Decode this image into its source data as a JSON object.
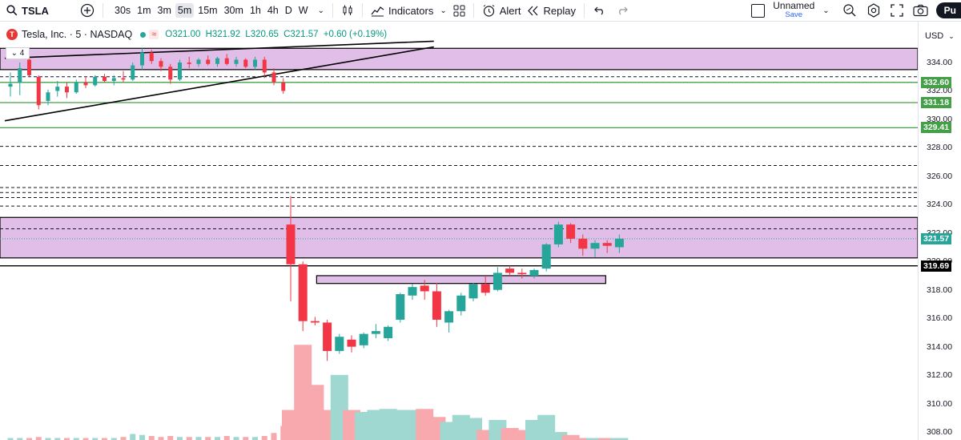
{
  "toolbar": {
    "symbol": "TSLA",
    "timeframes": [
      "30s",
      "1m",
      "3m",
      "5m",
      "15m",
      "30m",
      "1h",
      "4h",
      "D",
      "W"
    ],
    "active_timeframe": "5m",
    "indicators_label": "Indicators",
    "alert_label": "Alert",
    "replay_label": "Replay",
    "layout_name": "Unnamed",
    "save_label": "Save",
    "publish_label": "Pu"
  },
  "legend": {
    "title": "Tesla, Inc. · 5 · NASDAQ",
    "logo_letter": "T",
    "open": "O321.00",
    "high": "H321.92",
    "low": "L320.65",
    "close": "C321.57",
    "change": "+0.60 (+0.19%)",
    "indicator_count": "4"
  },
  "price_axis": {
    "currency": "USD",
    "ticks": [
      "334.00",
      "332.00",
      "330.00",
      "328.00",
      "326.00",
      "324.00",
      "322.00",
      "320.00",
      "318.00",
      "316.00",
      "314.00",
      "312.00",
      "310.00",
      "308.00"
    ],
    "labels": [
      {
        "text": "332.60",
        "price": 332.6,
        "color": "#43a047"
      },
      {
        "text": "331.18",
        "price": 331.18,
        "color": "#43a047"
      },
      {
        "text": "329.41",
        "price": 329.41,
        "color": "#43a047"
      },
      {
        "text": "321.57",
        "price": 321.57,
        "color": "#26a69a"
      },
      {
        "text": "319.69",
        "price": 319.69,
        "color": "#000000"
      }
    ]
  },
  "colors": {
    "up": "#26a69a",
    "down": "#f23645",
    "zone": "#e1bee7",
    "green_line": "#43a047"
  },
  "chart_data": {
    "type": "candlestick",
    "symbol": "TSLA",
    "interval": "5m",
    "price_range": [
      308,
      334.5
    ],
    "horizontal_levels_green": [
      332.6,
      331.18,
      329.41
    ],
    "horizontal_levels_dashed": [
      333.0,
      328.1,
      326.75,
      325.2,
      324.85,
      324.5,
      323.9,
      322.3
    ],
    "zones": [
      {
        "from": 333.5,
        "to": 335.0,
        "x_start": 0,
        "x_end": 1
      },
      {
        "from": 320.25,
        "to": 323.1,
        "x_start": 0,
        "x_end": 1
      },
      {
        "from": 318.45,
        "to": 319.0,
        "x_start": 0.345,
        "x_end": 0.66
      }
    ],
    "level_319_69": 319.69,
    "candles": [
      {
        "o": 332.3,
        "h": 333.3,
        "l": 331.6,
        "c": 332.5
      },
      {
        "o": 332.6,
        "h": 334.0,
        "l": 331.7,
        "c": 333.6
      },
      {
        "o": 334.2,
        "h": 334.5,
        "l": 333.0,
        "c": 333.1
      },
      {
        "o": 333.0,
        "h": 333.1,
        "l": 330.7,
        "c": 331.0
      },
      {
        "o": 331.3,
        "h": 332.1,
        "l": 331.0,
        "c": 331.9
      },
      {
        "o": 332.0,
        "h": 332.7,
        "l": 331.6,
        "c": 332.3
      },
      {
        "o": 332.3,
        "h": 332.6,
        "l": 331.5,
        "c": 331.9
      },
      {
        "o": 331.9,
        "h": 332.8,
        "l": 331.8,
        "c": 332.6
      },
      {
        "o": 332.6,
        "h": 333.0,
        "l": 332.2,
        "c": 332.4
      },
      {
        "o": 332.4,
        "h": 333.1,
        "l": 332.3,
        "c": 333.0
      },
      {
        "o": 333.0,
        "h": 333.2,
        "l": 332.6,
        "c": 332.7
      },
      {
        "o": 332.7,
        "h": 333.1,
        "l": 332.4,
        "c": 332.9
      },
      {
        "o": 332.9,
        "h": 333.4,
        "l": 332.6,
        "c": 332.8
      },
      {
        "o": 332.8,
        "h": 334.0,
        "l": 332.7,
        "c": 333.8
      },
      {
        "o": 333.8,
        "h": 335.0,
        "l": 333.5,
        "c": 334.7
      },
      {
        "o": 334.7,
        "h": 334.9,
        "l": 333.9,
        "c": 334.1
      },
      {
        "o": 334.1,
        "h": 334.3,
        "l": 333.4,
        "c": 333.7
      },
      {
        "o": 333.7,
        "h": 333.9,
        "l": 332.5,
        "c": 332.8
      },
      {
        "o": 332.8,
        "h": 334.2,
        "l": 332.7,
        "c": 334.0
      },
      {
        "o": 334.0,
        "h": 334.4,
        "l": 333.6,
        "c": 333.9
      },
      {
        "o": 333.9,
        "h": 334.3,
        "l": 333.7,
        "c": 334.2
      },
      {
        "o": 334.2,
        "h": 334.5,
        "l": 333.8,
        "c": 333.9
      },
      {
        "o": 333.9,
        "h": 334.4,
        "l": 333.7,
        "c": 334.3
      },
      {
        "o": 334.3,
        "h": 334.6,
        "l": 333.8,
        "c": 333.9
      },
      {
        "o": 333.9,
        "h": 334.4,
        "l": 333.7,
        "c": 334.2
      },
      {
        "o": 334.2,
        "h": 334.3,
        "l": 333.6,
        "c": 333.7
      },
      {
        "o": 333.7,
        "h": 334.4,
        "l": 333.5,
        "c": 334.2
      },
      {
        "o": 334.2,
        "h": 334.4,
        "l": 332.9,
        "c": 333.3
      },
      {
        "o": 333.3,
        "h": 333.6,
        "l": 332.4,
        "c": 332.6
      },
      {
        "o": 332.6,
        "h": 332.9,
        "l": 331.8,
        "c": 332.0
      },
      {
        "o": 322.6,
        "h": 324.6,
        "l": 317.2,
        "c": 319.8
      },
      {
        "o": 319.8,
        "h": 320.0,
        "l": 315.1,
        "c": 315.8
      },
      {
        "o": 315.8,
        "h": 316.1,
        "l": 315.5,
        "c": 315.7
      },
      {
        "o": 315.7,
        "h": 315.9,
        "l": 313.0,
        "c": 313.7
      },
      {
        "o": 313.7,
        "h": 314.9,
        "l": 313.5,
        "c": 314.7
      },
      {
        "o": 314.5,
        "h": 314.8,
        "l": 313.6,
        "c": 314.0
      },
      {
        "o": 314.1,
        "h": 315.0,
        "l": 313.9,
        "c": 314.9
      },
      {
        "o": 314.9,
        "h": 315.6,
        "l": 314.6,
        "c": 315.1
      },
      {
        "o": 314.6,
        "h": 315.5,
        "l": 314.4,
        "c": 315.4
      },
      {
        "o": 315.9,
        "h": 317.8,
        "l": 315.7,
        "c": 317.7
      },
      {
        "o": 317.6,
        "h": 318.4,
        "l": 317.3,
        "c": 318.2
      },
      {
        "o": 318.3,
        "h": 318.7,
        "l": 317.3,
        "c": 317.9
      },
      {
        "o": 317.9,
        "h": 318.5,
        "l": 315.4,
        "c": 315.9
      },
      {
        "o": 315.7,
        "h": 316.6,
        "l": 315.0,
        "c": 316.5
      },
      {
        "o": 316.5,
        "h": 317.8,
        "l": 316.2,
        "c": 317.6
      },
      {
        "o": 317.4,
        "h": 318.5,
        "l": 317.2,
        "c": 318.4
      },
      {
        "o": 318.4,
        "h": 319.0,
        "l": 317.6,
        "c": 317.8
      },
      {
        "o": 318.0,
        "h": 319.6,
        "l": 317.9,
        "c": 319.2
      },
      {
        "o": 319.5,
        "h": 319.7,
        "l": 319.0,
        "c": 319.2
      },
      {
        "o": 319.2,
        "h": 319.5,
        "l": 318.8,
        "c": 319.1
      },
      {
        "o": 319.0,
        "h": 319.5,
        "l": 318.8,
        "c": 319.4
      },
      {
        "o": 319.5,
        "h": 321.3,
        "l": 319.3,
        "c": 321.2
      },
      {
        "o": 321.2,
        "h": 322.8,
        "l": 321.0,
        "c": 322.6
      },
      {
        "o": 322.6,
        "h": 322.7,
        "l": 321.3,
        "c": 321.6
      },
      {
        "o": 321.6,
        "h": 321.9,
        "l": 320.4,
        "c": 320.9
      },
      {
        "o": 320.9,
        "h": 321.5,
        "l": 320.3,
        "c": 321.3
      },
      {
        "o": 321.3,
        "h": 321.5,
        "l": 320.6,
        "c": 321.1
      },
      {
        "o": 321.0,
        "h": 321.9,
        "l": 320.6,
        "c": 321.6
      }
    ],
    "volume_label": "Volume bars (relative)",
    "volumes": [
      2,
      2,
      2,
      3,
      2,
      2,
      2,
      2,
      2,
      2,
      2,
      2,
      3,
      6,
      5,
      4,
      3,
      4,
      3,
      3,
      3,
      3,
      3,
      4,
      3,
      3,
      3,
      4,
      7,
      14,
      30,
      95,
      55,
      30,
      65,
      30,
      28,
      30,
      31,
      30,
      30,
      31,
      23,
      18,
      25,
      22,
      10,
      20,
      12,
      10,
      20,
      25,
      8,
      5,
      2,
      2,
      2,
      2
    ],
    "volume_colors_up_down": "derived-from-candles",
    "trendlines": [
      {
        "p1": {
          "i": 0,
          "price": 334.3
        },
        "p2": {
          "i": 45,
          "price": 335.5
        }
      },
      {
        "p1": {
          "i": 0,
          "price": 329.9
        },
        "p2": {
          "i": 45,
          "price": 335.1
        }
      }
    ]
  }
}
